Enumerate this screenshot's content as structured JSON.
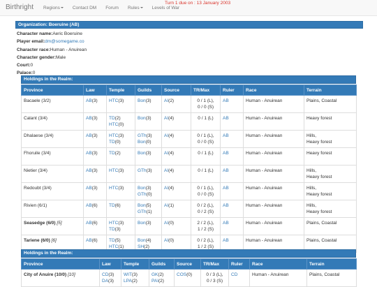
{
  "nav": {
    "brand": "Birthright",
    "items": [
      "Regions",
      "Contact DM",
      "Forum",
      "Rules",
      "Levels of War"
    ],
    "dropdowns": [
      true,
      false,
      false,
      true,
      false
    ],
    "notice": "Turn 1 due on : 13 January 2003"
  },
  "organization": "Organization: Boeruine (AB)",
  "info": [
    {
      "label": "Character name:",
      "value": "Aeric Boeruine"
    },
    {
      "label": "Player email:",
      "value": "dm@somegame.co",
      "link": true
    },
    {
      "label": "Character race:",
      "value": "Human - Anuirean"
    },
    {
      "label": "Character gender:",
      "value": "Male"
    },
    {
      "label": "Court:",
      "value": "0"
    },
    {
      "label": "Palace:",
      "value": "0"
    }
  ],
  "tables": [
    {
      "caption": "Holdings in the Realm:",
      "columns": [
        "Province",
        "Law",
        "Temple",
        "Guilds",
        "Source",
        "TR/Max",
        "Ruler",
        "Race",
        "Terrain"
      ],
      "rows": [
        {
          "province": {
            "name": "Bacaele (3/2)"
          },
          "law": [
            [
              "AB",
              "(3)"
            ]
          ],
          "temple": [
            [
              "HTC",
              "(3)"
            ]
          ],
          "guilds": [
            [
              "Bon",
              "(3)"
            ]
          ],
          "source": [
            [
              "AI",
              "(2)"
            ]
          ],
          "trmax": [
            "0 / 1 (L),",
            "0 / 0 (S)"
          ],
          "ruler": "AB",
          "race": "Human - Anuirean",
          "terrain": [
            "Plains, Coastal"
          ]
        },
        {
          "province": {
            "name": "Calant (3/4)"
          },
          "law": [
            [
              "AB",
              "(3)"
            ]
          ],
          "temple": [
            [
              "TD",
              "(2)"
            ],
            [
              "HTC",
              "(0)"
            ]
          ],
          "guilds": [
            [
              "Bon",
              "(3)"
            ]
          ],
          "source": [
            [
              "AI",
              "(4)"
            ]
          ],
          "trmax": [
            "0 / 1 (L)"
          ],
          "ruler": "AB",
          "race": "Human - Anuirean",
          "terrain": [
            "Heavy forest"
          ]
        },
        {
          "province": {
            "name": "Dhalaese (3/4)"
          },
          "law": [
            [
              "AB",
              "(3)"
            ]
          ],
          "temple": [
            [
              "HTC",
              "(3)"
            ],
            [
              "TD",
              "(0)"
            ]
          ],
          "guilds": [
            [
              "GTh",
              "(3)"
            ],
            [
              "Bon",
              "(0)"
            ]
          ],
          "source": [
            [
              "AI",
              "(4)"
            ]
          ],
          "trmax": [
            "0 / 1 (L),",
            "0 / 0 (S)"
          ],
          "ruler": "AB",
          "race": "Human - Anuirean",
          "terrain": [
            "Hills,",
            "Heavy forest"
          ]
        },
        {
          "province": {
            "name": "Fhoruile (3/4)"
          },
          "law": [
            [
              "AB",
              "(3)"
            ]
          ],
          "temple": [
            [
              "TD",
              "(2)"
            ]
          ],
          "guilds": [
            [
              "Bon",
              "(3)"
            ]
          ],
          "source": [
            [
              "AI",
              "(4)"
            ]
          ],
          "trmax": [
            "0 / 1 (L)"
          ],
          "ruler": "AB",
          "race": "Human - Anuirean",
          "terrain": [
            "Heavy forest"
          ]
        },
        {
          "province": {
            "name": "Nietier (3/4)"
          },
          "law": [
            [
              "AB",
              "(3)"
            ]
          ],
          "temple": [
            [
              "HTC",
              "(3)"
            ]
          ],
          "guilds": [
            [
              "GTh",
              "(3)"
            ]
          ],
          "source": [
            [
              "AI",
              "(4)"
            ]
          ],
          "trmax": [
            "0 / 1 (L)"
          ],
          "ruler": "AB",
          "race": "Human - Anuirean",
          "terrain": [
            "Hills,",
            "Heavy forest"
          ]
        },
        {
          "province": {
            "name": "Redoubt (3/4)"
          },
          "law": [
            [
              "AB",
              "(3)"
            ]
          ],
          "temple": [
            [
              "HTC",
              "(3)"
            ]
          ],
          "guilds": [
            [
              "Bon",
              "(3)"
            ],
            [
              "GTh",
              "(0)"
            ]
          ],
          "source": [
            [
              "AI",
              "(4)"
            ]
          ],
          "trmax": [
            "0 / 1 (L),",
            "0 / 0 (S)"
          ],
          "ruler": "AB",
          "race": "Human - Anuirean",
          "terrain": [
            "Hills,",
            "Heavy forest"
          ]
        },
        {
          "province": {
            "name": "Rivien (6/1)"
          },
          "law": [
            [
              "AB",
              "(6)"
            ]
          ],
          "temple": [
            [
              "TD",
              "(6)"
            ]
          ],
          "guilds": [
            [
              "Bon",
              "(5)"
            ],
            [
              "GTh",
              "(1)"
            ]
          ],
          "source": [
            [
              "AI",
              "(1)"
            ]
          ],
          "trmax": [
            "0 / 2 (L),",
            "0 / 2 (S)"
          ],
          "ruler": "AB",
          "race": "Human - Anuirean",
          "terrain": [
            "Hills,",
            "Heavy forest"
          ]
        },
        {
          "province": {
            "name": "Seasedge (6/0)",
            "note": "[5]"
          },
          "law": [
            [
              "AB",
              "(6)"
            ]
          ],
          "temple": [
            [
              "HTC",
              "(3)"
            ],
            [
              "TD",
              "(3)"
            ]
          ],
          "guilds": [
            [
              "Bon",
              "(3)"
            ]
          ],
          "source": [
            [
              "AI",
              "(0)"
            ]
          ],
          "trmax": [
            "2 / 2 (L),",
            "1 / 2 (S)"
          ],
          "ruler": "AB",
          "race": "Human - Anuirean",
          "terrain": [
            "Plains, Coastal"
          ]
        },
        {
          "province": {
            "name": "Tariene (6/0)",
            "note": "[6]"
          },
          "law": [
            [
              "AB",
              "(6)"
            ]
          ],
          "temple": [
            [
              "TD",
              "(5)"
            ],
            [
              "HTC",
              "(1)"
            ]
          ],
          "guilds": [
            [
              "Bon",
              "(4)"
            ],
            [
              "SH",
              "(2)"
            ]
          ],
          "source": [
            [
              "AI",
              "(0)"
            ]
          ],
          "trmax": [
            "0 / 2 (L),",
            "1 / 2 (S)"
          ],
          "ruler": "AB",
          "race": "Human - Anuirean",
          "terrain": [
            "Plains, Coastal"
          ]
        }
      ]
    },
    {
      "caption": "Holdings in the Realm:",
      "columns": [
        "Province",
        "Law",
        "Temple",
        "Guilds",
        "Source",
        "TR/Max",
        "Ruler",
        "Race",
        "Terrain"
      ],
      "rows": [
        {
          "province": {
            "name": "City of Anuire (10/0)",
            "note": "[10]"
          },
          "law": [
            [
              "CD",
              "(3)"
            ],
            [
              "DA",
              "(3)"
            ]
          ],
          "temple": [
            [
              "WIT",
              "(3)"
            ],
            [
              "LPA",
              "(2)"
            ]
          ],
          "guilds": [
            [
              "GK",
              "(2)"
            ],
            [
              "PAI",
              "(2)"
            ]
          ],
          "source": [
            [
              "COS",
              "(0)"
            ]
          ],
          "trmax": [
            "0 / 3 (L),",
            "0 / 3 (S)"
          ],
          "ruler": "CD",
          "race": "Human - Anuirean",
          "terrain": [
            "Plains, Coastal"
          ]
        }
      ]
    }
  ]
}
